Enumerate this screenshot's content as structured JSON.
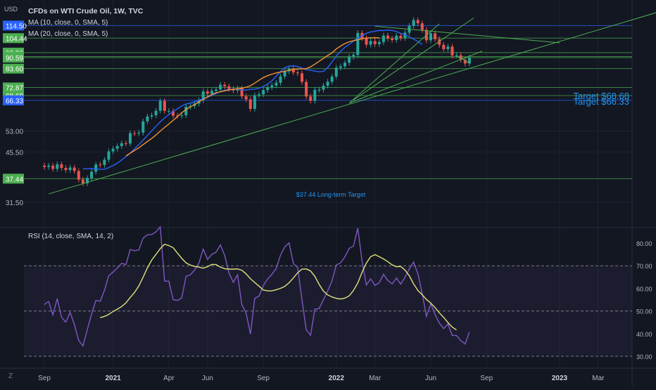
{
  "header": {
    "currency": "USD",
    "title": "CFDs on WTI Crude Oil, 1W, TVC",
    "ma10_label": "MA (10, close, 0, SMA, 5)",
    "ma20_label": "MA (20, close, 0, SMA, 5)",
    "rsi_label": "RSI (14, close, SMA, 14, 2)",
    "z_label": "Z"
  },
  "colors": {
    "background": "#131722",
    "up": "#26a69a",
    "down": "#ef5350",
    "ma10": "#2962ff",
    "ma20": "#f59331",
    "rsi_line": "#7e57c2",
    "rsi_ma": "#dfe27a",
    "trend": "#4caf50",
    "level_blue": "#2962ff",
    "target_text": "#2196f3"
  },
  "annotations": {
    "target_top": "Target $68.68",
    "target_bottom": "Target $66.33",
    "long_term": "$37.44 Long-term Target"
  },
  "chart_data": [
    {
      "type": "candlestick",
      "title": "CFDs on WTI Crude Oil, 1W, TVC",
      "price_scale_labels": [
        "114.50",
        "104.44",
        "93.99",
        "91.31",
        "90.59",
        "83.60",
        "72.87",
        "68.68",
        "66.33",
        "53.00",
        "45.50",
        "37.44",
        "31.50"
      ],
      "price_scale_tick_values": [
        114.5,
        93.99,
        53.0,
        45.5,
        31.5
      ],
      "highlighted_levels": [
        {
          "label": "114.50",
          "value": 114.5,
          "color": "#2962ff"
        },
        {
          "label": "104.44",
          "value": 104.44,
          "color": "#4caf50"
        },
        {
          "label": "93.99",
          "value": 93.99,
          "color": "#4caf50"
        },
        {
          "label": "91.31",
          "value": 91.31,
          "color": "#4caf50"
        },
        {
          "label": "90.59",
          "value": 90.59,
          "color": "#4caf50"
        },
        {
          "label": "83.60",
          "value": 83.6,
          "color": "#4caf50"
        },
        {
          "label": "72.87",
          "value": 72.87,
          "color": "#4caf50"
        },
        {
          "label": "68.68",
          "value": 68.68,
          "color": "#4caf50"
        },
        {
          "label": "66.33",
          "value": 66.33,
          "color": "#2962ff"
        },
        {
          "label": "37.44",
          "value": 37.44,
          "color": "#4caf50"
        }
      ],
      "time_labels": [
        {
          "label": "Sep",
          "t": 0
        },
        {
          "label": "2021",
          "t": 16
        },
        {
          "label": "Apr",
          "t": 29
        },
        {
          "label": "Jun",
          "t": 38
        },
        {
          "label": "Sep",
          "t": 51
        },
        {
          "label": "2022",
          "t": 68
        },
        {
          "label": "Mar",
          "t": 77
        },
        {
          "label": "Jun",
          "t": 90
        },
        {
          "label": "Sep",
          "t": 103
        },
        {
          "label": "2023",
          "t": 120
        },
        {
          "label": "Mar",
          "t": 129
        }
      ],
      "closes_weekly": [
        40.8,
        41.2,
        40.2,
        41.6,
        40.5,
        39.9,
        40.6,
        39.6,
        37.2,
        36.2,
        37.6,
        39.4,
        41.5,
        41.4,
        43.0,
        45.7,
        46.6,
        47.5,
        48.5,
        48.4,
        52.2,
        52.1,
        52.4,
        56.9,
        59.0,
        59.5,
        61.5,
        66.1,
        61.4,
        61.4,
        59.3,
        59.2,
        59.5,
        63.3,
        63.7,
        64.8,
        66.4,
        70.8,
        69.6,
        71.1,
        71.8,
        74.3,
        73.5,
        72.1,
        71.3,
        72.4,
        68.3,
        66.8,
        62.3,
        68.8,
        69.3,
        71.5,
        73.0,
        74.0,
        75.4,
        79.0,
        82.0,
        83.6,
        81.3,
        80.8,
        75.9,
        68.2,
        66.1,
        71.6,
        71.7,
        73.8,
        76.0,
        78.9,
        84.2,
        85.0,
        87.3,
        91.2,
        92.4,
        108.5,
        104.4,
        99.6,
        102.2,
        100.0,
        101.5,
        106.4,
        104.2,
        103.0,
        106.3,
        104.5,
        108.7,
        114.2,
        119.2,
        116.4,
        110.9,
        102.8,
        108.2,
        103.7,
        99.5,
        96.4,
        98.2,
        92.1,
        92.1,
        89.2,
        86.8,
        90.6
      ],
      "ma10_values": {
        "start_t": 9,
        "values": [
          40.2,
          40.3,
          40.3,
          40.3,
          40.1,
          40.1,
          40.6,
          41.2,
          41.9,
          42.9,
          44.0,
          45.1,
          46.6,
          48.0,
          49.6,
          51.3,
          53.1,
          54.9,
          56.7,
          58.3,
          59.8,
          61.1,
          62.4,
          63.7,
          64.6,
          65.0,
          65.6,
          66.4,
          67.2,
          67.8,
          68.7,
          69.7,
          70.7,
          71.4,
          71.8,
          72.0,
          71.9,
          71.5,
          71.5,
          71.9,
          72.0,
          72.5,
          73.4,
          74.7,
          76.5,
          79.1,
          81.8,
          84.2,
          85.1,
          85.4,
          84.9,
          83.9,
          82.9,
          82.7,
          82.1,
          81.7,
          82.0,
          84.3,
          87.8,
          91.7,
          94.9,
          97.7,
          99.8,
          102.2,
          104.4,
          106.3,
          108.2,
          109.3,
          109.9,
          110.5,
          110.4,
          110.8,
          110.5,
          109.6,
          108.2,
          107.0,
          105.4,
          103.7,
          101.9,
          99.7
        ]
      },
      "ma20_values": {
        "start_t": 19,
        "values": [
          44.2,
          45.1,
          46.0,
          46.9,
          48.0,
          49.1,
          50.2,
          51.5,
          53.0,
          54.4,
          55.8,
          57.3,
          58.9,
          60.6,
          62.0,
          63.2,
          64.3,
          65.6,
          66.8,
          68.0,
          69.2,
          70.1,
          70.6,
          71.1,
          71.6,
          71.9,
          72.2,
          72.5,
          73.0,
          73.8,
          75.2,
          76.8,
          78.3,
          79.4,
          80.3,
          81.0,
          81.5,
          82.0,
          82.6,
          83.1,
          83.4,
          83.4,
          83.6,
          84.7,
          86.4,
          88.2,
          90.1,
          92.0,
          93.8,
          96.5,
          98.6,
          100.4,
          101.7,
          102.5,
          103.2,
          104.0,
          104.5,
          104.7,
          104.8,
          104.6
        ]
      },
      "trendlines": [
        {
          "name": "long-term-support",
          "from": {
            "t": 1,
            "price": 33.5
          },
          "to": {
            "t": 152,
            "price": 137.5
          }
        },
        {
          "name": "channel-support",
          "from": {
            "t": 71,
            "price": 65.0
          },
          "to": {
            "t": 102,
            "price": 95.0
          }
        },
        {
          "name": "steep-support-1",
          "from": {
            "t": 71,
            "price": 65.0
          },
          "to": {
            "t": 92,
            "price": 116.0
          }
        },
        {
          "name": "steep-support-2",
          "from": {
            "t": 72,
            "price": 66.5
          },
          "to": {
            "t": 100,
            "price": 121.0
          }
        },
        {
          "name": "descending-top",
          "from": {
            "t": 77,
            "price": 114.0
          },
          "to": {
            "t": 120,
            "price": 101.0
          }
        },
        {
          "name": "short-trend",
          "from": {
            "t": 96,
            "price": 92.0
          },
          "to": {
            "t": 99,
            "price": 87.0
          }
        }
      ],
      "ylim": [
        27.0,
        122.0
      ]
    },
    {
      "type": "line",
      "title": "RSI (14, close, SMA, 14, 2)",
      "ylim": [
        30,
        80
      ],
      "y_ticks": [
        "80.00",
        "70.00",
        "60.00",
        "50.00",
        "40.00",
        "30.00"
      ],
      "band": [
        30,
        70
      ],
      "midline": 50,
      "series": [
        {
          "name": "RSI",
          "start_t": 0,
          "values": [
            52.9,
            54.2,
            48.3,
            55.5,
            47.3,
            45.1,
            49.4,
            44.0,
            37.0,
            34.6,
            41.8,
            48.6,
            54.7,
            54.3,
            59.1,
            65.6,
            67.2,
            69.0,
            71.1,
            70.5,
            77.2,
            76.6,
            77.0,
            82.2,
            83.7,
            83.8,
            85.0,
            87.2,
            63.2,
            63.2,
            55.0,
            54.7,
            55.7,
            65.3,
            66.0,
            68.1,
            71.2,
            77.4,
            72.8,
            75.0,
            76.0,
            79.2,
            74.6,
            66.8,
            62.7,
            66.0,
            52.9,
            49.1,
            39.8,
            55.6,
            56.6,
            61.2,
            64.2,
            66.2,
            68.8,
            74.7,
            78.4,
            80.1,
            71.0,
            69.2,
            55.0,
            41.7,
            39.3,
            50.8,
            51.1,
            55.0,
            58.9,
            63.4,
            70.3,
            71.3,
            73.9,
            77.7,
            78.7,
            86.6,
            72.1,
            61.5,
            64.2,
            61.3,
            62.5,
            66.2,
            63.5,
            62.0,
            64.6,
            61.9,
            64.9,
            68.6,
            71.6,
            66.5,
            57.8,
            47.7,
            53.2,
            48.4,
            44.7,
            42.2,
            44.3,
            39.2,
            39.2,
            36.9,
            35.4,
            40.7
          ]
        },
        {
          "name": "RSI-based MA",
          "start_t": 13,
          "values": [
            47.1,
            47.6,
            48.5,
            49.8,
            50.8,
            52.0,
            53.6,
            56.0,
            58.2,
            61.1,
            64.9,
            69.1,
            72.5,
            75.0,
            77.6,
            79.5,
            78.9,
            78.0,
            75.6,
            73.3,
            71.3,
            70.3,
            69.7,
            69.4,
            68.9,
            69.6,
            70.6,
            70.5,
            69.4,
            68.7,
            68.5,
            68.5,
            68.6,
            68.0,
            66.4,
            64.3,
            62.6,
            61.0,
            59.3,
            58.9,
            58.9,
            59.4,
            60.0,
            60.9,
            62.5,
            64.6,
            66.9,
            68.5,
            68.6,
            67.7,
            65.3,
            61.8,
            58.8,
            57.1,
            56.2,
            55.6,
            55.3,
            55.7,
            56.7,
            59.1,
            62.4,
            67.1,
            71.2,
            74.0,
            74.9,
            74.0,
            73.0,
            71.8,
            70.4,
            69.6,
            69.7,
            68.1,
            65.6,
            62.0,
            59.1,
            57.2,
            55.1,
            53.5,
            51.5,
            49.2,
            47.2,
            44.9,
            42.9,
            41.6
          ]
        }
      ]
    }
  ]
}
